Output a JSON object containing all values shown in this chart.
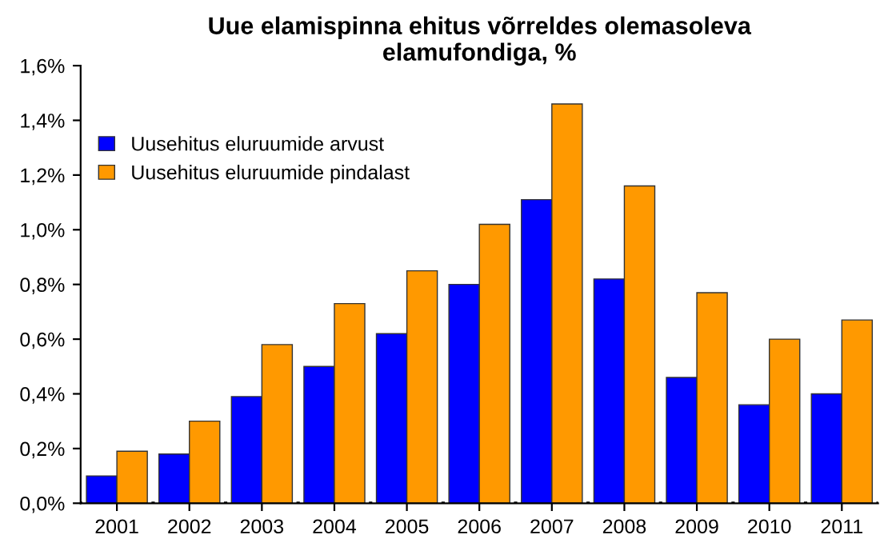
{
  "chart_data": {
    "type": "bar",
    "title": "Uue elamispinna ehitus võrreldes olemasoleva\nelamufondiga, %",
    "categories": [
      "2001",
      "2002",
      "2003",
      "2004",
      "2005",
      "2006",
      "2007",
      "2008",
      "2009",
      "2010",
      "2011"
    ],
    "series": [
      {
        "name": "Uusehitus eluruumide arvust",
        "color": "#0000ff",
        "values": [
          0.1,
          0.18,
          0.39,
          0.5,
          0.62,
          0.8,
          1.11,
          0.82,
          0.46,
          0.36,
          0.4
        ]
      },
      {
        "name": "Uusehitus eluruumide pindalast",
        "color": "#ff9900",
        "values": [
          0.19,
          0.3,
          0.58,
          0.73,
          0.85,
          1.02,
          1.46,
          1.16,
          0.77,
          0.6,
          0.67
        ]
      }
    ],
    "ylim": [
      0,
      1.6
    ],
    "yticks": [
      {
        "value": 0,
        "label": "0,0%"
      },
      {
        "value": 0.2,
        "label": "0,2%"
      },
      {
        "value": 0.4,
        "label": "0,4%"
      },
      {
        "value": 0.6,
        "label": "0,6%"
      },
      {
        "value": 0.8,
        "label": "0,8%"
      },
      {
        "value": 1.0,
        "label": "1,0%"
      },
      {
        "value": 1.2,
        "label": "1,2%"
      },
      {
        "value": 1.4,
        "label": "1,4%"
      },
      {
        "value": 1.6,
        "label": "1,6%"
      }
    ],
    "legend": "top left",
    "grid": false
  }
}
